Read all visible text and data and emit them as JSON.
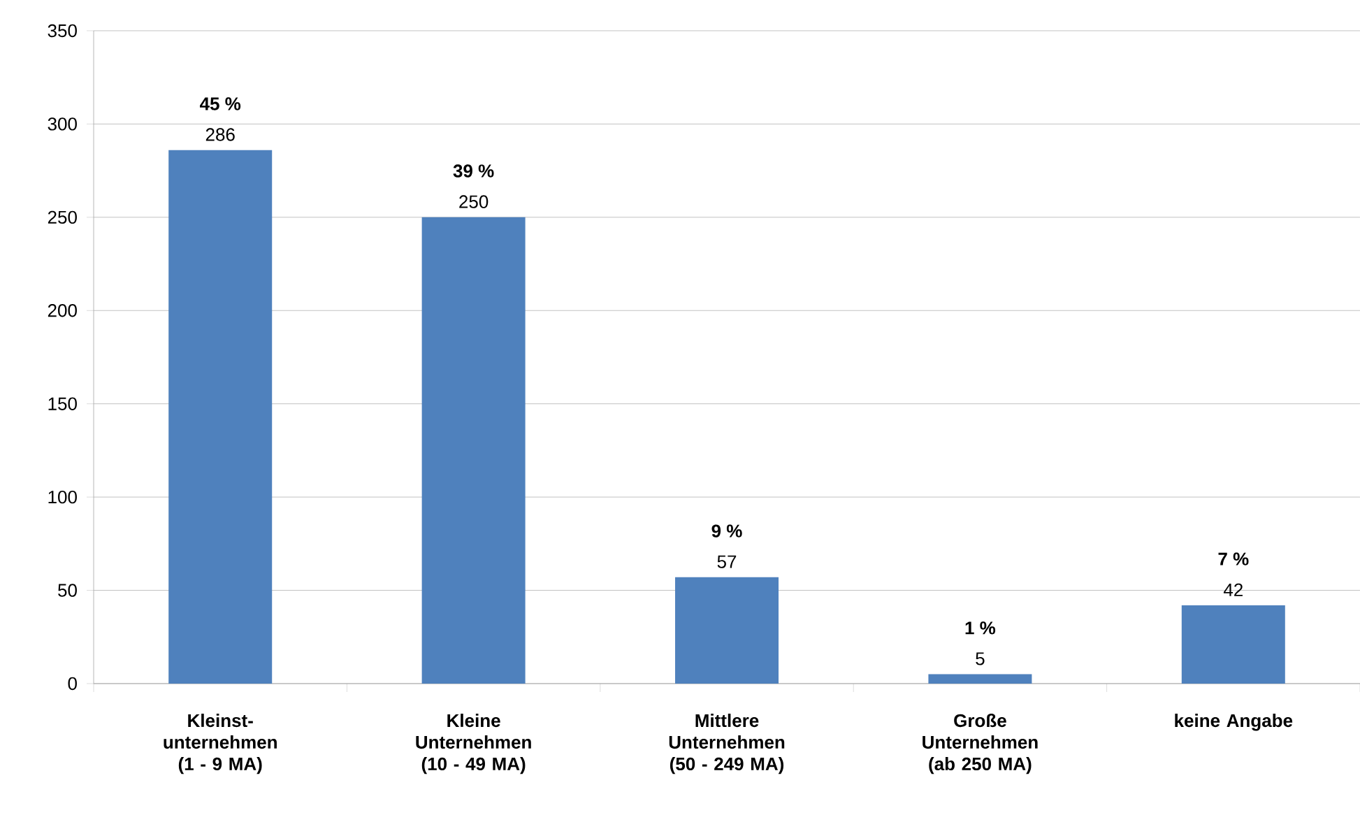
{
  "chart_data": {
    "type": "bar",
    "categories": [
      "Kleinst- unternehmen (1 - 9 MA)",
      "Kleine Unternehmen (10 - 49 MA)",
      "Mittlere Unternehmen (50 - 249 MA)",
      "Große Unternehmen (ab 250 MA)",
      "keine Angabe"
    ],
    "values": [
      286,
      250,
      57,
      5,
      42
    ],
    "color": "#4f81bd",
    "ylim": [
      0,
      350
    ],
    "yticks": [
      0,
      50,
      100,
      150,
      200,
      250,
      300,
      350
    ],
    "grid": "y",
    "data_labels": true,
    "annotations": [
      {
        "text": "45 %",
        "x": "Kleinst- unternehmen (1 - 9 MA)",
        "y": 286
      },
      {
        "text": "39 %",
        "x": "Kleine Unternehmen (10 - 49 MA)",
        "y": 250
      },
      {
        "text": "9 %",
        "x": "Mittlere Unternehmen (50 - 249 MA)",
        "y": 57
      },
      {
        "text": "1 %",
        "x": "Große Unternehmen (ab 250 MA)",
        "y": 5
      },
      {
        "text": "7 %",
        "x": "keine Angabe",
        "y": 42
      }
    ]
  }
}
